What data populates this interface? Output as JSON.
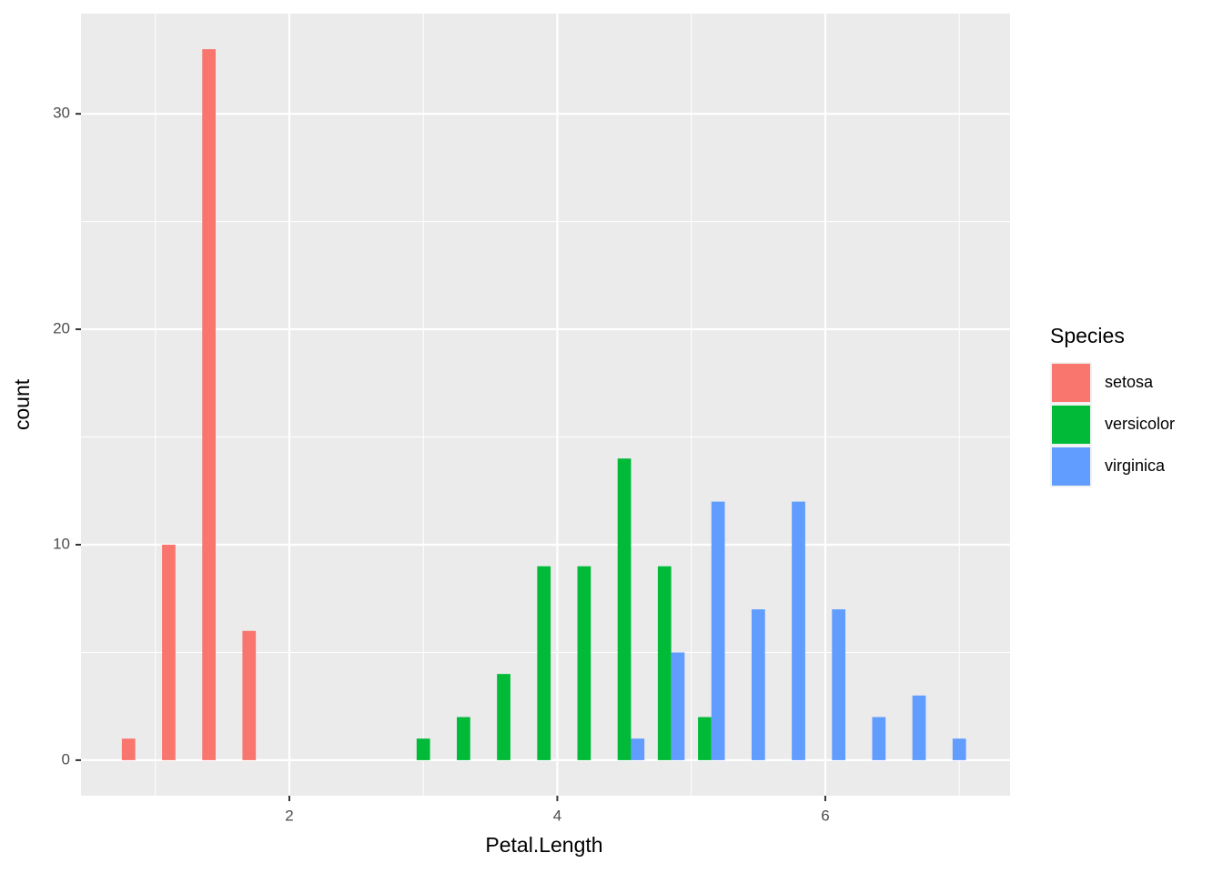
{
  "chart_data": {
    "type": "histogram",
    "x_label": "Petal.Length",
    "y_label": "count",
    "legend_title": "Species",
    "legend_position": "right",
    "bins": [
      0.75,
      1.05,
      1.35,
      1.65,
      1.95,
      2.25,
      2.55,
      2.85,
      3.15,
      3.45,
      3.75,
      4.05,
      4.35,
      4.65,
      4.95,
      5.25,
      5.55,
      5.85,
      6.15,
      6.45,
      6.75,
      7.05
    ],
    "series": [
      {
        "name": "setosa",
        "color": "#F8766D",
        "values": [
          1,
          10,
          33,
          6,
          0,
          0,
          0,
          0,
          0,
          0,
          0,
          0,
          0,
          0,
          0,
          0,
          0,
          0,
          0,
          0,
          0
        ]
      },
      {
        "name": "versicolor",
        "color": "#00BA38",
        "values": [
          0,
          0,
          0,
          0,
          0,
          0,
          0,
          1,
          2,
          4,
          9,
          9,
          14,
          9,
          2,
          0,
          0,
          0,
          0,
          0,
          0
        ]
      },
      {
        "name": "virginica",
        "color": "#619CFF",
        "values": [
          0,
          0,
          0,
          0,
          0,
          0,
          0,
          0,
          0,
          0,
          0,
          0,
          1,
          5,
          12,
          7,
          12,
          7,
          2,
          3,
          1
        ]
      }
    ],
    "xlim": [
      0.445,
      7.379
    ],
    "ylim": [
      -1.65,
      34.65
    ],
    "xticks": [
      2,
      4,
      6
    ],
    "yticks": [
      0,
      10,
      20,
      30
    ],
    "grid": true
  }
}
